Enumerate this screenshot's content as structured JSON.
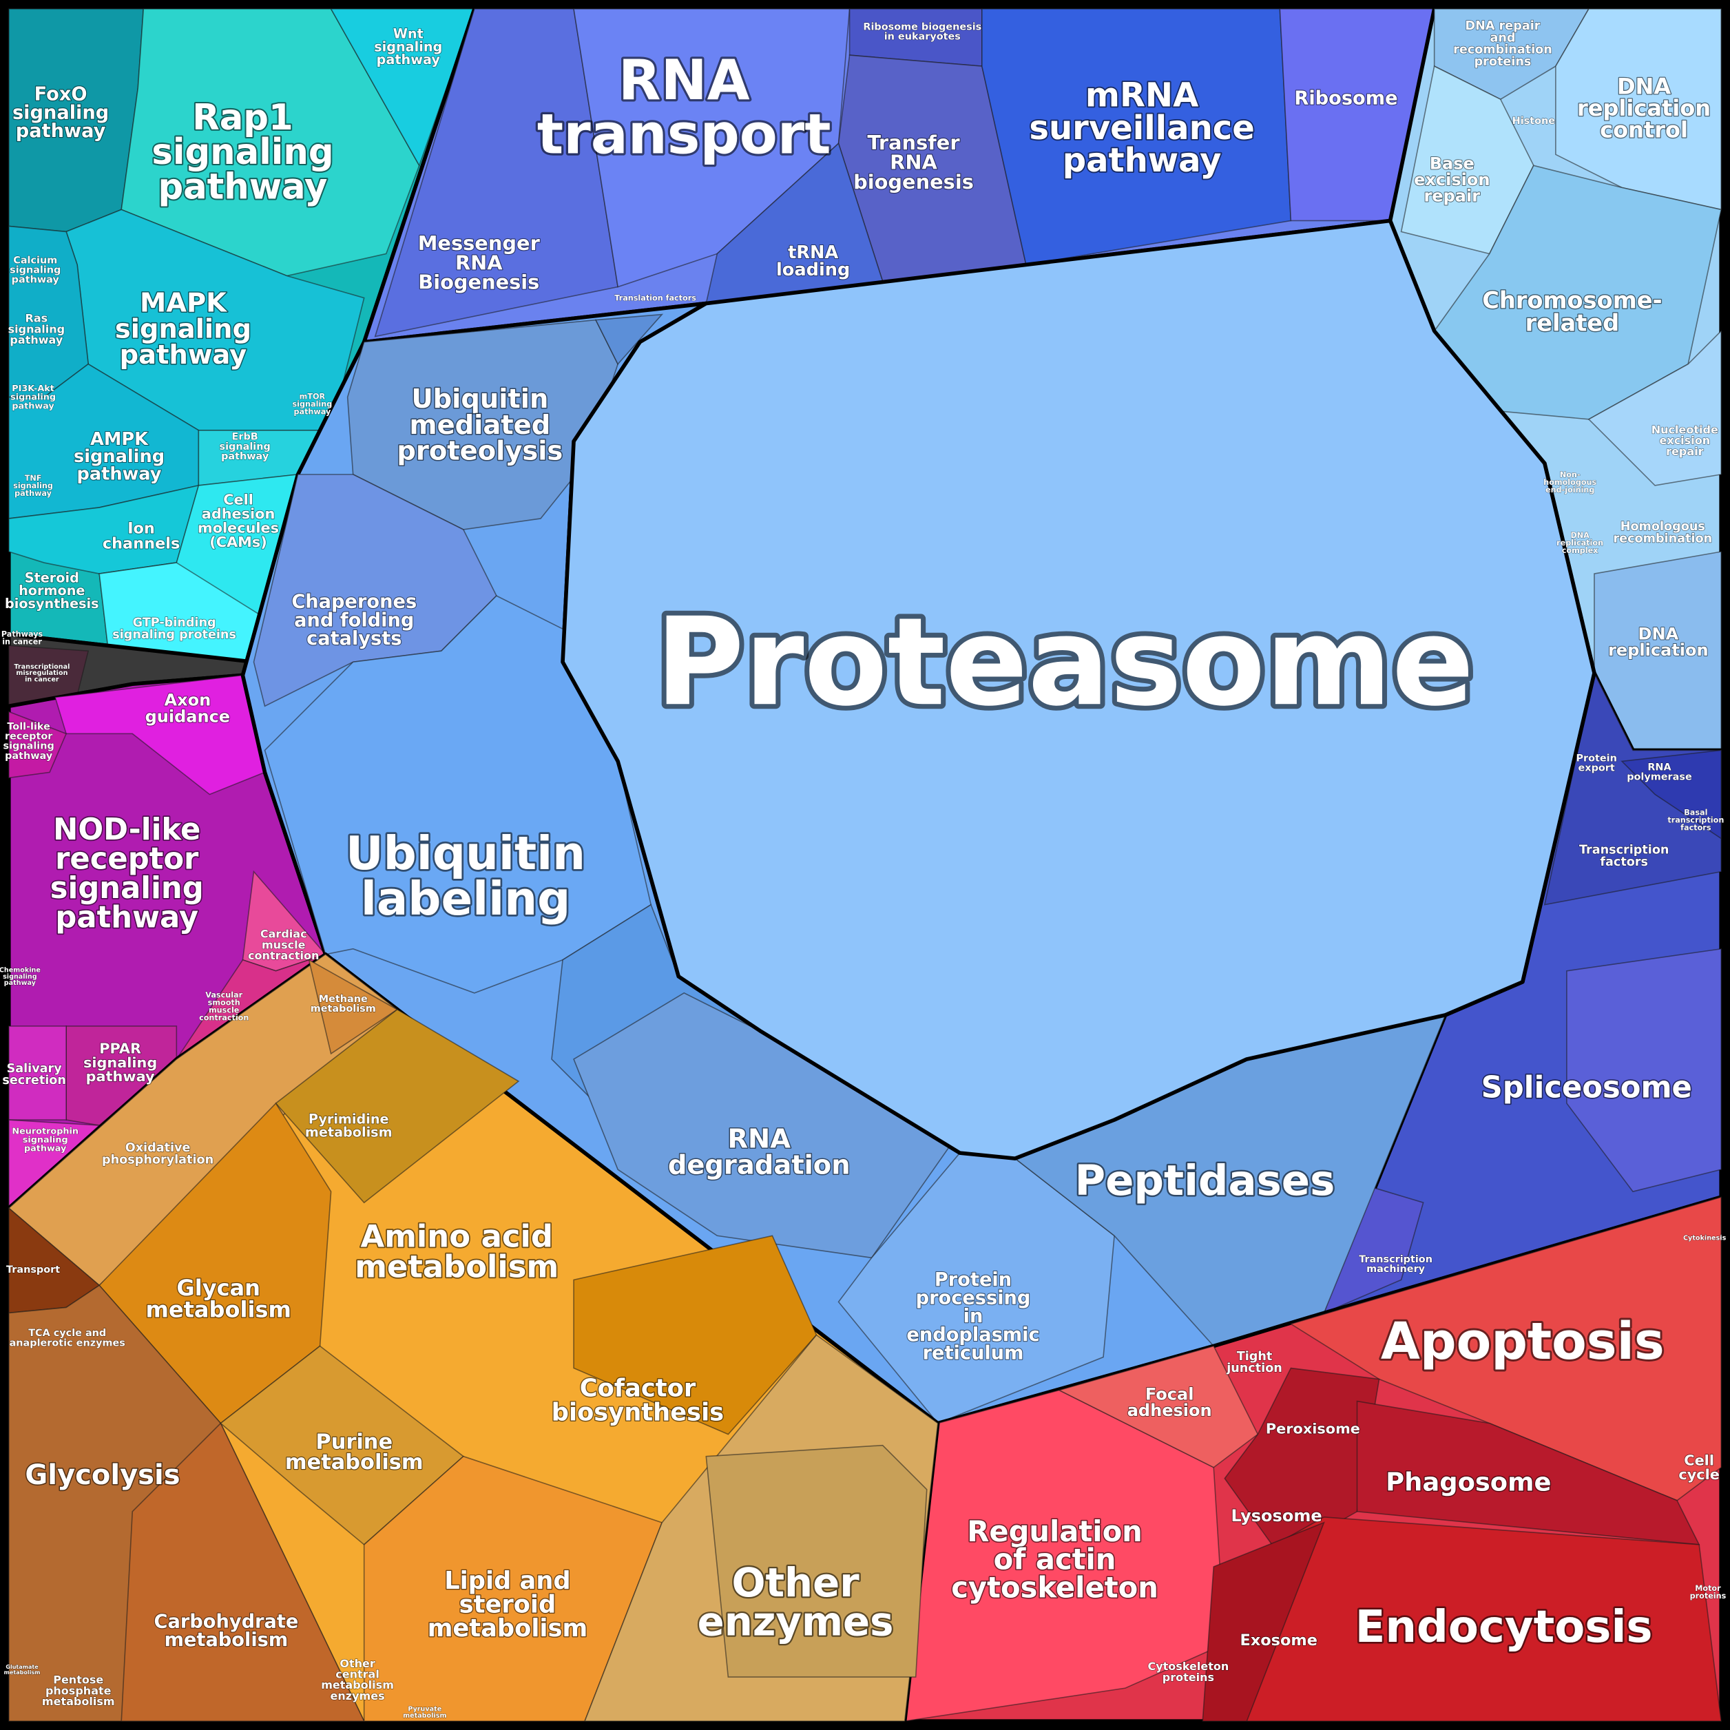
{
  "cells": [
    {
      "label": "Proteasome"
    },
    {
      "label": "RNA\ntransport"
    },
    {
      "label": "mRNA\nsurveillance\npathway"
    },
    {
      "label": "Ribosome"
    },
    {
      "label": "Transfer\nRNA\nbiogenesis"
    },
    {
      "label": "tRNA\nloading"
    },
    {
      "label": "Messenger\nRNA\nBiogenesis"
    },
    {
      "label": "Ribosome biogenesis\nin eukaryotes"
    },
    {
      "label": "Translation factors"
    },
    {
      "label": "FoxO\nsignaling\npathway"
    },
    {
      "label": "Rap1\nsignaling\npathway"
    },
    {
      "label": "Wnt\nsignaling\npathway"
    },
    {
      "label": "MAPK\nsignaling\npathway"
    },
    {
      "label": "Calcium\nsignaling\npathway"
    },
    {
      "label": "Ras\nsignaling\npathway"
    },
    {
      "label": "PI3K-Akt\nsignaling\npathway"
    },
    {
      "label": "AMPK\nsignaling\npathway"
    },
    {
      "label": "ErbB\nsignaling\npathway"
    },
    {
      "label": "mTOR\nsignaling\npathway"
    },
    {
      "label": "TNF\nsignaling\npathway"
    },
    {
      "label": "Ion\nchannels"
    },
    {
      "label": "Cell\nadhesion\nmolecules\n(CAMs)"
    },
    {
      "label": "Steroid\nhormone\nbiosynthesis"
    },
    {
      "label": "GTP-binding\nsignaling proteins"
    },
    {
      "label": "Pathways\nin cancer"
    },
    {
      "label": "Transcriptional\nmisregulation\nin cancer"
    },
    {
      "label": "Axon\nguidance"
    },
    {
      "label": "Toll-like\nreceptor\nsignaling\npathway"
    },
    {
      "label": "NOD-like\nreceptor\nsignaling\npathway"
    },
    {
      "label": "Cardiac\nmuscle\ncontraction"
    },
    {
      "label": "Vascular\nsmooth\nmuscle\ncontraction"
    },
    {
      "label": "PPAR\nsignaling\npathway"
    },
    {
      "label": "Salivary\nsecretion"
    },
    {
      "label": "Neurotrophin\nsignaling\npathway"
    },
    {
      "label": "Chemokine\nsignaling\npathway"
    },
    {
      "label": "Ubiquitin\nmediated\nproteolysis"
    },
    {
      "label": "Chaperones\nand folding\ncatalysts"
    },
    {
      "label": "Ubiquitin\nlabeling"
    },
    {
      "label": "RNA\ndegradation"
    },
    {
      "label": "Peptidases"
    },
    {
      "label": "Protein\nprocessing\nin\nendoplasmic\nreticulum"
    },
    {
      "label": "DNA repair\nand\nrecombination\nproteins"
    },
    {
      "label": "DNA\nreplication\ncontrol"
    },
    {
      "label": "Histone"
    },
    {
      "label": "Base\nexcision\nrepair"
    },
    {
      "label": "Chromosome-\nrelated"
    },
    {
      "label": "Nucleotide\nexcision\nrepair"
    },
    {
      "label": "Non-\nhomologous\nend-joining"
    },
    {
      "label": "Homologous\nrecombination"
    },
    {
      "label": "DNA\nreplication\ncomplex"
    },
    {
      "label": "DNA\nreplication"
    },
    {
      "label": "Protein\nexport"
    },
    {
      "label": "RNA\npolymerase"
    },
    {
      "label": "Basal\ntranscription\nfactors"
    },
    {
      "label": "Transcription\nfactors"
    },
    {
      "label": "Spliceosome"
    },
    {
      "label": "Transcription\nmachinery"
    },
    {
      "label": "Apoptosis"
    },
    {
      "label": "Tight\njunction"
    },
    {
      "label": "Focal\nadhesion"
    },
    {
      "label": "Peroxisome"
    },
    {
      "label": "Phagosome"
    },
    {
      "label": "Cell\ncycle"
    },
    {
      "label": "Lysosome"
    },
    {
      "label": "Cytokinesis"
    },
    {
      "label": "Motor\nproteins"
    },
    {
      "label": "Endocytosis"
    },
    {
      "label": "Exosome"
    },
    {
      "label": "Regulation\nof actin\ncytoskeleton"
    },
    {
      "label": "Cytoskeleton\nproteins"
    },
    {
      "label": "Other\nenzymes"
    },
    {
      "label": "Methane\nmetabolism"
    },
    {
      "label": "Pyrimidine\nmetabolism"
    },
    {
      "label": "Oxidative\nphosphorylation"
    },
    {
      "label": "Amino acid\nmetabolism"
    },
    {
      "label": "Glycan\nmetabolism"
    },
    {
      "label": "Transport"
    },
    {
      "label": "TCA cycle and\nanaplerotic enzymes"
    },
    {
      "label": "Cofactor\nbiosynthesis"
    },
    {
      "label": "Purine\nmetabolism"
    },
    {
      "label": "Glycolysis"
    },
    {
      "label": "Lipid and\nsteroid\nmetabolism"
    },
    {
      "label": "Carbohydrate\nmetabolism"
    },
    {
      "label": "Other\ncentral\nmetabolism\nenzymes"
    },
    {
      "label": "Pentose\nphosphate\nmetabolism"
    },
    {
      "label": "Pyruvate\nmetabolism"
    },
    {
      "label": "Glutamate\nmetabolism"
    }
  ]
}
